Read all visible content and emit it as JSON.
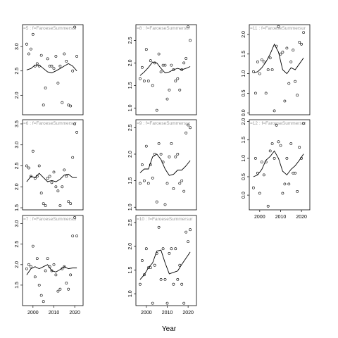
{
  "chart_data": {
    "type": "scatter",
    "xlabel": "Year",
    "colors": {
      "points": "#000000",
      "line": "#000000",
      "strip_text": "#9a9a9a",
      "frame": "#000000"
    },
    "panels": [
      {
        "label": "=5 : f=FaroeseSummersur",
        "xlim": [
          1995,
          2024
        ],
        "ylim": [
          1.6,
          3.45
        ],
        "yticks": [
          2.0,
          2.5,
          3.0
        ],
        "ytick_labels": [
          "2.0",
          "2.5",
          "3.0"
        ],
        "x": [
          1997,
          1998,
          1999,
          2000,
          2001,
          2002,
          2003,
          2004,
          2005,
          2006,
          2007,
          2008,
          2009,
          2010,
          2011,
          2012,
          2013,
          2014,
          2015,
          2016,
          2017,
          2018,
          2019,
          2020,
          2021
        ],
        "y": [
          3.05,
          2.85,
          2.95,
          3.25,
          2.6,
          2.65,
          2.6,
          2.82,
          1.8,
          2.15,
          2.75,
          2.6,
          2.6,
          2.55,
          2.8,
          2.25,
          2.6,
          1.85,
          2.85,
          2.7,
          1.8,
          1.78,
          2.5,
          3.4,
          2.8
        ],
        "smooth_x": [
          1997,
          1999,
          2001,
          2003,
          2005,
          2007,
          2009,
          2011,
          2013,
          2015,
          2017,
          2019,
          2021
        ],
        "smooth_y": [
          2.52,
          2.55,
          2.62,
          2.62,
          2.55,
          2.48,
          2.46,
          2.5,
          2.55,
          2.6,
          2.65,
          2.6,
          2.5
        ]
      },
      {
        "label": "=6 : f=FaroeseSummersur",
        "xlim": [
          1995,
          2024
        ],
        "ylim": [
          1.45,
          3.6
        ],
        "yticks": [
          1.5,
          2.0,
          2.5,
          3.0,
          3.5
        ],
        "ytick_labels": [
          "1.5",
          "2.0",
          "2.5",
          "3.0",
          "3.5"
        ],
        "x": [
          1997,
          1998,
          1999,
          2000,
          2001,
          2002,
          2003,
          2004,
          2005,
          2006,
          2007,
          2008,
          2009,
          2010,
          2011,
          2012,
          2013,
          2014,
          2015,
          2016,
          2017,
          2018,
          2019,
          2020,
          2021
        ],
        "y": [
          2.5,
          2.45,
          2.25,
          2.85,
          2.2,
          2.25,
          2.5,
          1.85,
          1.6,
          1.55,
          2.2,
          2.25,
          2.1,
          2.35,
          2.0,
          1.9,
          1.55,
          2.0,
          2.4,
          2.25,
          1.65,
          1.6,
          2.7,
          3.5,
          3.3
        ],
        "smooth_x": [
          1997,
          1999,
          2001,
          2003,
          2005,
          2007,
          2009,
          2011,
          2013,
          2015,
          2017,
          2019,
          2021
        ],
        "smooth_y": [
          2.12,
          2.25,
          2.22,
          2.32,
          2.22,
          2.12,
          2.15,
          2.12,
          2.18,
          2.28,
          2.3,
          2.22,
          2.22
        ]
      },
      {
        "label": "=7 : f=FaroeseSummersur",
        "xlim": [
          1995,
          2024
        ],
        "ylim": [
          1.0,
          3.2
        ],
        "yticks": [
          1.5,
          2.0,
          2.5,
          3.0
        ],
        "ytick_labels": [
          "1.5",
          "2.0",
          "2.5",
          "3.0"
        ],
        "x": [
          1997,
          1998,
          1999,
          2000,
          2001,
          2002,
          2003,
          2004,
          2005,
          2006,
          2007,
          2008,
          2009,
          2010,
          2011,
          2012,
          2013,
          2014,
          2015,
          2016,
          2017,
          2018,
          2019,
          2020,
          2021
        ],
        "y": [
          1.9,
          2.0,
          1.95,
          2.45,
          1.7,
          2.15,
          1.5,
          1.25,
          1.1,
          1.85,
          2.15,
          1.95,
          1.85,
          2.0,
          1.75,
          1.35,
          1.4,
          1.9,
          1.95,
          1.55,
          1.4,
          1.75,
          2.7,
          3.15,
          2.7
        ],
        "smooth_x": [
          1997,
          1999,
          2001,
          2003,
          2005,
          2007,
          2009,
          2011,
          2013,
          2015,
          2017,
          2019,
          2021
        ],
        "smooth_y": [
          1.75,
          1.9,
          1.95,
          1.9,
          1.95,
          2.0,
          1.85,
          1.82,
          1.88,
          1.95,
          1.9,
          1.92,
          1.92
        ]
      },
      {
        "label": "=8 : f=FaroeseSummersur",
        "xlim": [
          1995,
          2024
        ],
        "ylim": [
          0.85,
          2.85
        ],
        "yticks": [
          1.0,
          1.5,
          2.0,
          2.5
        ],
        "ytick_labels": [
          "1.0",
          "1.5",
          "2.0",
          "2.5"
        ],
        "x": [
          1997,
          1998,
          1999,
          2000,
          2001,
          2002,
          2003,
          2004,
          2005,
          2006,
          2007,
          2008,
          2009,
          2010,
          2011,
          2012,
          2013,
          2014,
          2015,
          2016,
          2017,
          2018,
          2019,
          2020,
          2021
        ],
        "y": [
          1.65,
          1.9,
          1.6,
          2.3,
          1.6,
          2.05,
          1.5,
          2.0,
          0.95,
          2.2,
          1.8,
          1.95,
          1.95,
          1.2,
          1.4,
          1.95,
          1.85,
          1.6,
          1.65,
          1.4,
          1.85,
          2.0,
          2.1,
          2.8,
          2.5
        ],
        "smooth_x": [
          1997,
          1999,
          2001,
          2003,
          2005,
          2007,
          2009,
          2011,
          2013,
          2015,
          2017,
          2019,
          2021
        ],
        "smooth_y": [
          1.72,
          1.8,
          1.9,
          2.02,
          2.0,
          1.88,
          1.78,
          1.8,
          1.85,
          1.88,
          1.85,
          1.88,
          1.92
        ]
      },
      {
        "label": "=9 : f=FaroeseSummersur",
        "xlim": [
          1995,
          2024
        ],
        "ylim": [
          0.95,
          2.65
        ],
        "yticks": [
          1.0,
          1.5,
          2.0,
          2.5
        ],
        "ytick_labels": [
          "1.0",
          "1.5",
          "2.0",
          "2.5"
        ],
        "x": [
          1997,
          1998,
          1999,
          2000,
          2001,
          2002,
          2003,
          2004,
          2005,
          2006,
          2007,
          2008,
          2009,
          2010,
          2011,
          2012,
          2013,
          2014,
          2015,
          2016,
          2017,
          2018,
          2019,
          2020,
          2021
        ],
        "y": [
          1.45,
          1.8,
          1.5,
          2.15,
          1.45,
          1.8,
          1.55,
          2.0,
          1.1,
          2.2,
          2.0,
          1.85,
          1.05,
          1.45,
          1.95,
          2.2,
          1.35,
          1.95,
          2.0,
          1.45,
          1.5,
          1.3,
          2.4,
          2.55,
          2.5
        ],
        "smooth_x": [
          1997,
          1999,
          2001,
          2003,
          2005,
          2007,
          2009,
          2011,
          2013,
          2015,
          2017,
          2019,
          2021
        ],
        "smooth_y": [
          1.65,
          1.72,
          1.72,
          1.95,
          2.0,
          1.9,
          1.72,
          1.6,
          1.62,
          1.7,
          1.7,
          1.78,
          1.88
        ]
      },
      {
        "label": "=10 : f=FaroeseSummersur",
        "xlim": [
          1995,
          2024
        ],
        "ylim": [
          0.75,
          2.65
        ],
        "yticks": [
          1.0,
          1.5,
          2.0,
          2.5
        ],
        "ytick_labels": [
          "1.0",
          "1.5",
          "2.0",
          "2.5"
        ],
        "x": [
          1997,
          1998,
          1999,
          2000,
          2001,
          2002,
          2003,
          2004,
          2005,
          2006,
          2007,
          2008,
          2009,
          2010,
          2011,
          2012,
          2013,
          2014,
          2015,
          2016,
          2017,
          2018,
          2019,
          2020,
          2021
        ],
        "y": [
          1.2,
          1.7,
          1.4,
          1.95,
          1.55,
          1.55,
          0.8,
          1.6,
          1.85,
          2.4,
          1.3,
          1.95,
          1.3,
          0.8,
          1.85,
          1.95,
          1.2,
          1.95,
          1.3,
          1.6,
          1.2,
          0.8,
          2.3,
          2.1,
          2.35
        ],
        "smooth_x": [
          1997,
          1999,
          2001,
          2003,
          2005,
          2007,
          2009,
          2011,
          2013,
          2015,
          2017,
          2019,
          2021
        ],
        "smooth_y": [
          1.3,
          1.4,
          1.55,
          1.65,
          1.9,
          1.92,
          1.65,
          1.42,
          1.45,
          1.48,
          1.62,
          1.75,
          1.88
        ]
      },
      {
        "label": "=11 : f=FaroeseSummersur",
        "xlim": [
          1995,
          2024
        ],
        "ylim": [
          -0.05,
          2.25
        ],
        "yticks": [
          0.0,
          0.5,
          1.0,
          1.5,
          2.0
        ],
        "ytick_labels": [
          "0.0",
          "0.5",
          "1.0",
          "1.5",
          "2.0"
        ],
        "x": [
          1997,
          1998,
          1999,
          2000,
          2001,
          2002,
          2003,
          2004,
          2005,
          2006,
          2007,
          2008,
          2009,
          2010,
          2011,
          2012,
          2013,
          2014,
          2015,
          2016,
          2017,
          2018,
          2019,
          2020,
          2021
        ],
        "y": [
          1.05,
          0.5,
          1.3,
          1.0,
          1.35,
          1.3,
          0.5,
          1.1,
          1.4,
          1.1,
          0.05,
          1.7,
          2.2,
          1.5,
          1.55,
          0.3,
          1.65,
          0.75,
          1.3,
          1.6,
          0.8,
          0.45,
          1.8,
          1.75,
          2.05
        ],
        "smooth_x": [
          1997,
          1999,
          2001,
          2003,
          2005,
          2007,
          2009,
          2011,
          2013,
          2015,
          2017,
          2019,
          2021
        ],
        "smooth_y": [
          1.02,
          1.05,
          1.15,
          1.3,
          1.5,
          1.75,
          1.55,
          1.1,
          1.0,
          1.15,
          1.1,
          1.25,
          1.4
        ]
      },
      {
        "label": "=12 : f=FaroeseSummersur",
        "xlim": [
          1995,
          2024
        ],
        "ylim": [
          -0.4,
          2.05
        ],
        "yticks": [
          0.0,
          0.5,
          1.0,
          1.5,
          2.0
        ],
        "ytick_labels": [
          "0.0",
          "0.5",
          "1.0",
          "1.5",
          "2.0"
        ],
        "x": [
          1997,
          1998,
          1999,
          2000,
          2001,
          2002,
          2003,
          2004,
          2005,
          2006,
          2007,
          2008,
          2009,
          2010,
          2011,
          2012,
          2013,
          2014,
          2015,
          2016,
          2017,
          2018,
          2019,
          2020,
          2021
        ],
        "y": [
          0.2,
          1.0,
          0.6,
          0.05,
          0.9,
          0.55,
          0.9,
          -0.3,
          1.2,
          1.4,
          1.0,
          1.9,
          1.45,
          1.35,
          0.05,
          0.3,
          1.0,
          0.3,
          1.4,
          0.6,
          0.6,
          0.1,
          1.3,
          1.0,
          1.95
        ],
        "smooth_x": [
          1997,
          1999,
          2001,
          2003,
          2005,
          2007,
          2009,
          2011,
          2013,
          2015,
          2017,
          2019,
          2021
        ],
        "smooth_y": [
          0.5,
          0.55,
          0.7,
          0.95,
          1.05,
          1.2,
          1.0,
          0.65,
          0.55,
          0.7,
          0.8,
          0.95,
          1.12
        ]
      }
    ]
  }
}
